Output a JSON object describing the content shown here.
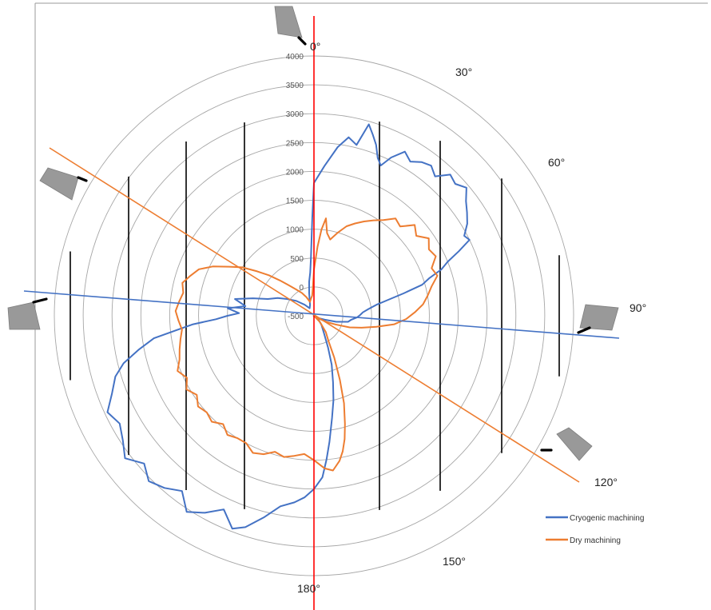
{
  "chart_data": {
    "type": "line",
    "subtype": "polar",
    "title": "",
    "radial_axis": {
      "range": [
        -500,
        4000
      ],
      "ticks": [
        -500,
        0,
        500,
        1000,
        1500,
        2000,
        2500,
        3000,
        3500,
        4000
      ],
      "tick_labels": [
        "-500",
        "0",
        "500",
        "1000",
        "1500",
        "2000",
        "2500",
        "3000",
        "3500",
        "4000"
      ]
    },
    "angle_labels": [
      "0°",
      "30°",
      "60°",
      "90°",
      "120°",
      "150°",
      "180°"
    ],
    "angular_unit": "deg",
    "grid": true,
    "legend": {
      "position": "bottom-right"
    },
    "colors": {
      "cryogenic": "#4472C4",
      "dry": "#ED7D31",
      "reference_line": "#FF0000",
      "grid": "#A6A6A6",
      "bars": "#000000",
      "tool": "#999999"
    },
    "series": [
      {
        "name": "Cryogenic machining",
        "color": "#4472C4",
        "points": [
          [
            0,
            1800
          ],
          [
            4,
            2100
          ],
          [
            8,
            2450
          ],
          [
            11,
            2650
          ],
          [
            14,
            2550
          ],
          [
            16,
            2950
          ],
          [
            18,
            2800
          ],
          [
            20,
            2650
          ],
          [
            22,
            2450
          ],
          [
            24,
            2350
          ],
          [
            26,
            2550
          ],
          [
            29,
            2750
          ],
          [
            32,
            2650
          ],
          [
            35,
            2750
          ],
          [
            38,
            2800
          ],
          [
            41,
            2700
          ],
          [
            44,
            2900
          ],
          [
            47,
            2850
          ],
          [
            50,
            2950
          ],
          [
            53,
            2800
          ],
          [
            56,
            2700
          ],
          [
            59,
            2600
          ],
          [
            62,
            2450
          ],
          [
            64,
            2500
          ],
          [
            66,
            2250
          ],
          [
            68,
            2000
          ],
          [
            70,
            1850
          ],
          [
            72,
            1600
          ],
          [
            74,
            1450
          ],
          [
            76,
            1100
          ],
          [
            78,
            800
          ],
          [
            80,
            600
          ],
          [
            83,
            450
          ],
          [
            86,
            350
          ],
          [
            89,
            300
          ],
          [
            92,
            250
          ],
          [
            96,
            150
          ],
          [
            100,
            100
          ],
          [
            105,
            -100
          ],
          [
            110,
            -300
          ],
          [
            115,
            -400
          ],
          [
            120,
            -450
          ],
          [
            130,
            -400
          ],
          [
            140,
            -300
          ],
          [
            150,
            -150
          ],
          [
            156,
            100
          ],
          [
            160,
            400
          ],
          [
            164,
            700
          ],
          [
            167,
            1000
          ],
          [
            170,
            1300
          ],
          [
            173,
            1700
          ],
          [
            175,
            2000
          ],
          [
            177,
            2300
          ],
          [
            180,
            2500
          ],
          [
            183,
            2650
          ],
          [
            186,
            2750
          ],
          [
            190,
            2850
          ],
          [
            194,
            3100
          ],
          [
            198,
            3350
          ],
          [
            201,
            3450
          ],
          [
            205,
            3200
          ],
          [
            209,
            3400
          ],
          [
            213,
            3550
          ],
          [
            217,
            3300
          ],
          [
            221,
            3450
          ],
          [
            225,
            3550
          ],
          [
            229,
            3400
          ],
          [
            233,
            3600
          ],
          [
            237,
            3450
          ],
          [
            241,
            3350
          ],
          [
            245,
            3450
          ],
          [
            249,
            3250
          ],
          [
            253,
            3100
          ],
          [
            256,
            2900
          ],
          [
            259,
            2600
          ],
          [
            262,
            2300
          ],
          [
            264,
            1900
          ],
          [
            266,
            1600
          ],
          [
            268,
            1200
          ],
          [
            270,
            1000
          ],
          [
            272,
            800
          ],
          [
            275,
            1000
          ],
          [
            278,
            700
          ],
          [
            282,
            900
          ],
          [
            286,
            600
          ],
          [
            290,
            350
          ],
          [
            296,
            200
          ],
          [
            302,
            50
          ],
          [
            310,
            -100
          ],
          [
            320,
            -250
          ],
          [
            330,
            -350
          ],
          [
            340,
            -300
          ],
          [
            348,
            -100
          ],
          [
            352,
            100
          ],
          [
            355,
            250
          ],
          [
            357,
            500
          ],
          [
            359,
            1200
          ],
          [
            360,
            1800
          ]
        ]
      },
      {
        "name": "Dry machining",
        "color": "#ED7D31",
        "points": [
          [
            0,
            300
          ],
          [
            3,
            700
          ],
          [
            5,
            1000
          ],
          [
            7,
            1200
          ],
          [
            9,
            950
          ],
          [
            12,
            850
          ],
          [
            16,
            1000
          ],
          [
            20,
            1150
          ],
          [
            24,
            1250
          ],
          [
            28,
            1350
          ],
          [
            32,
            1450
          ],
          [
            36,
            1550
          ],
          [
            40,
            1700
          ],
          [
            44,
            1650
          ],
          [
            48,
            1850
          ],
          [
            52,
            1750
          ],
          [
            56,
            1900
          ],
          [
            60,
            1800
          ],
          [
            64,
            1850
          ],
          [
            68,
            1700
          ],
          [
            72,
            1750
          ],
          [
            76,
            1600
          ],
          [
            80,
            1500
          ],
          [
            84,
            1400
          ],
          [
            88,
            1250
          ],
          [
            92,
            1100
          ],
          [
            96,
            900
          ],
          [
            100,
            600
          ],
          [
            104,
            350
          ],
          [
            108,
            150
          ],
          [
            112,
            -100
          ],
          [
            116,
            -250
          ],
          [
            120,
            -400
          ],
          [
            128,
            -500
          ],
          [
            136,
            -350
          ],
          [
            144,
            -150
          ],
          [
            150,
            0
          ],
          [
            154,
            300
          ],
          [
            158,
            700
          ],
          [
            161,
            1100
          ],
          [
            164,
            1450
          ],
          [
            166,
            1700
          ],
          [
            168,
            1900
          ],
          [
            170,
            2050
          ],
          [
            173,
            2200
          ],
          [
            176,
            2150
          ],
          [
            180,
            2000
          ],
          [
            184,
            1900
          ],
          [
            188,
            1950
          ],
          [
            192,
            2000
          ],
          [
            196,
            1950
          ],
          [
            200,
            2050
          ],
          [
            204,
            2100
          ],
          [
            208,
            2000
          ],
          [
            212,
            2000
          ],
          [
            216,
            2050
          ],
          [
            220,
            1950
          ],
          [
            224,
            2050
          ],
          [
            228,
            2000
          ],
          [
            232,
            2050
          ],
          [
            236,
            1950
          ],
          [
            240,
            2050
          ],
          [
            244,
            1950
          ],
          [
            248,
            2050
          ],
          [
            252,
            1950
          ],
          [
            256,
            1900
          ],
          [
            260,
            1850
          ],
          [
            264,
            1800
          ],
          [
            268,
            1850
          ],
          [
            272,
            1900
          ],
          [
            276,
            1850
          ],
          [
            280,
            1800
          ],
          [
            284,
            1850
          ],
          [
            288,
            1750
          ],
          [
            292,
            1650
          ],
          [
            296,
            1450
          ],
          [
            300,
            1200
          ],
          [
            304,
            1000
          ],
          [
            308,
            750
          ],
          [
            312,
            550
          ],
          [
            316,
            350
          ],
          [
            320,
            200
          ],
          [
            326,
            50
          ],
          [
            332,
            -50
          ],
          [
            338,
            -150
          ],
          [
            344,
            -250
          ],
          [
            350,
            -200
          ],
          [
            355,
            -150
          ],
          [
            358,
            0
          ],
          [
            360,
            300
          ]
        ]
      }
    ],
    "legend_entries": [
      "Cryogenic machining",
      "Dry machining"
    ]
  }
}
